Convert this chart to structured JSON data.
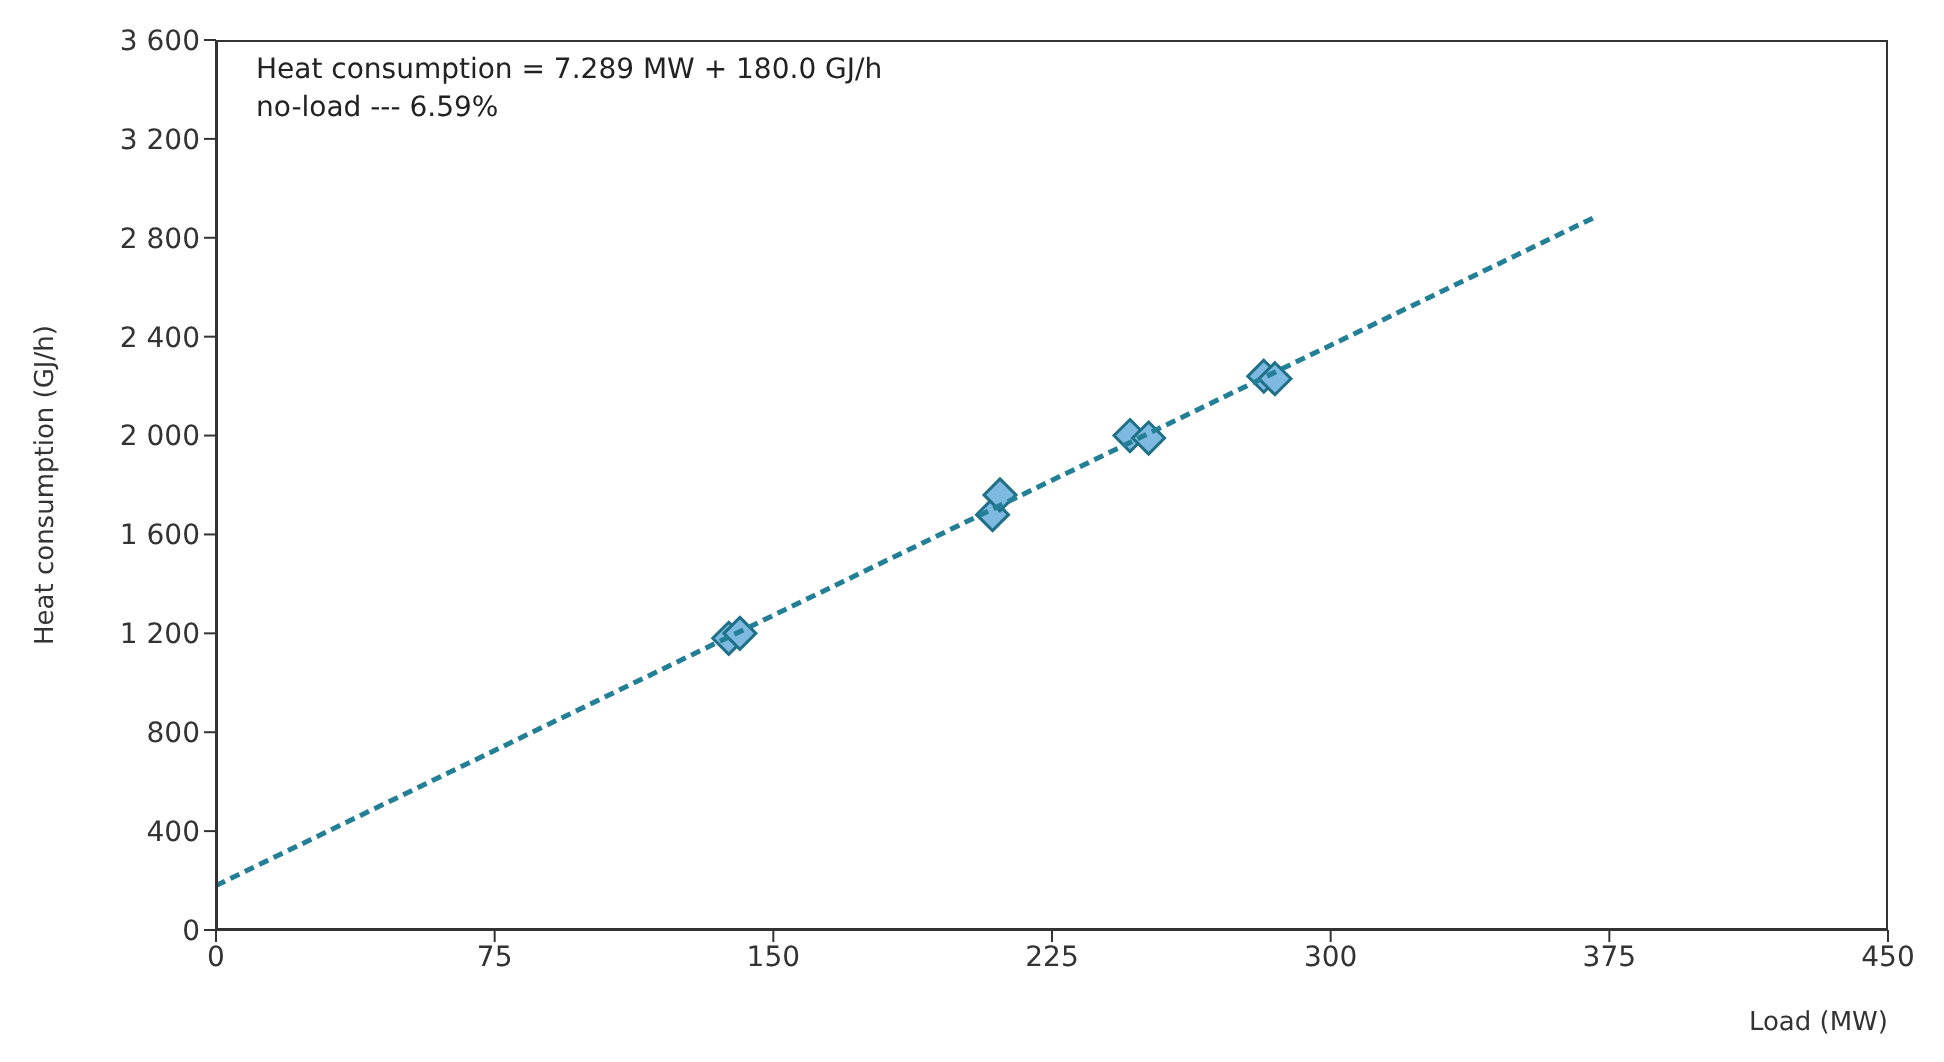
{
  "chart_data": {
    "type": "scatter",
    "xlabel": "Load (MW)",
    "ylabel": "Heat consumption (GJ/h)",
    "xlim": [
      0,
      450
    ],
    "xticks": [
      0,
      75,
      150,
      225,
      300,
      375,
      450
    ],
    "ylim": [
      0,
      3600
    ],
    "yticks": [
      0,
      400,
      800,
      {
        "value": 1200,
        "label": "1 200"
      },
      {
        "value": 1600,
        "label": "1 600"
      },
      {
        "value": 2000,
        "label": "2 000"
      },
      {
        "value": 2400,
        "label": "2 400"
      },
      {
        "value": 2800,
        "label": "2 800"
      },
      {
        "value": 3200,
        "label": "3 200"
      },
      {
        "value": 3600,
        "label": "3 600"
      }
    ],
    "marker": "diamond",
    "annotations": [
      "Heat consumption = 7.289 MW + 180.0 GJ/h",
      "no-load --- 6.59%"
    ],
    "series": [
      {
        "color": "#7db9e0",
        "x": [
          138,
          141,
          209,
          211,
          246,
          251,
          282,
          285
        ],
        "values": [
          1180,
          1200,
          1680,
          1760,
          2000,
          1990,
          2240,
          2230
        ]
      },
      {
        "type": "line",
        "color": "#237f96",
        "line_style": "dashed",
        "marker": "none",
        "x": [
          0,
          372
        ],
        "values": [
          180,
          2890
        ]
      }
    ]
  }
}
